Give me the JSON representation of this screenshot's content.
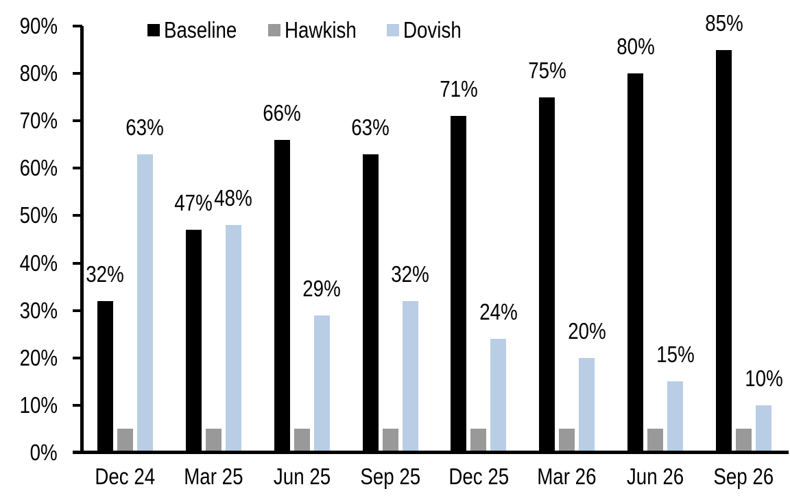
{
  "background_color": "#ffffff",
  "text_color": "#000000",
  "chart_data": {
    "type": "bar",
    "title": "",
    "xlabel": "",
    "ylabel": "",
    "categories": [
      "Dec 24",
      "Mar 25",
      "Jun 25",
      "Sep 25",
      "Dec 25",
      "Mar 26",
      "Jun 26",
      "Sep 26"
    ],
    "series": [
      {
        "name": "Baseline",
        "color": "#000000",
        "values": [
          32,
          47,
          66,
          63,
          71,
          75,
          80,
          85
        ],
        "data_labels": [
          "32%",
          "47%",
          "66%",
          "63%",
          "71%",
          "75%",
          "80%",
          "85%"
        ],
        "show_labels": true
      },
      {
        "name": "Hawkish",
        "color": "#999999",
        "values": [
          5,
          5,
          5,
          5,
          5,
          5,
          5,
          5
        ],
        "data_labels": [],
        "show_labels": false
      },
      {
        "name": "Dovish",
        "color": "#B9CDE5",
        "values": [
          63,
          48,
          29,
          32,
          24,
          20,
          15,
          10
        ],
        "data_labels": [
          "63%",
          "48%",
          "29%",
          "32%",
          "24%",
          "20%",
          "15%",
          "10%"
        ],
        "show_labels": true
      }
    ],
    "ylim": [
      0,
      90
    ],
    "ytick_step": 10,
    "ytick_labels": [
      "0%",
      "10%",
      "20%",
      "30%",
      "40%",
      "50%",
      "60%",
      "70%",
      "80%",
      "90%"
    ],
    "grid": false,
    "legend_position": "top-center",
    "axis_color": "#000000"
  }
}
